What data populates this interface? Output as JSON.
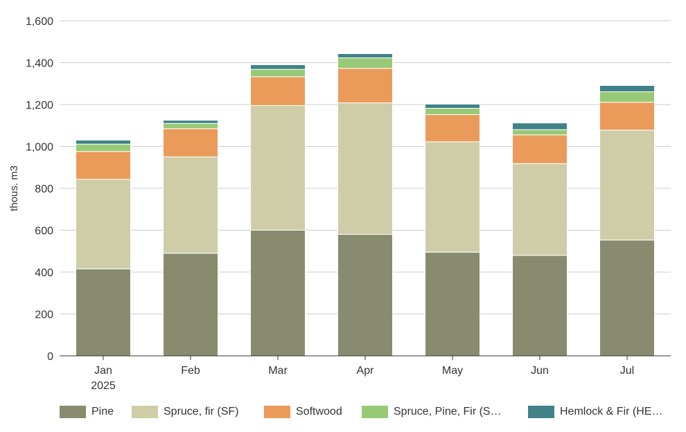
{
  "chart_data": {
    "type": "bar",
    "stacked": true,
    "title": "",
    "xlabel": "",
    "ylabel": "thous. m3",
    "ylim": [
      0,
      1600
    ],
    "yticks": [
      0,
      200,
      400,
      600,
      800,
      1000,
      1200,
      1400,
      1600
    ],
    "ytick_labels": [
      "0",
      "200",
      "400",
      "600",
      "800",
      "1,000",
      "1,200",
      "1,400",
      "1,600"
    ],
    "grid": true,
    "legend_position": "bottom",
    "categories": [
      "Jan",
      "Feb",
      "Mar",
      "Apr",
      "May",
      "Jun",
      "Jul"
    ],
    "category_sublabels": [
      "2025",
      "",
      "",
      "",
      "",
      "",
      ""
    ],
    "series": [
      {
        "name": "Pine",
        "color": "#888b6e",
        "values": [
          415,
          490,
          600,
          580,
          495,
          480,
          553
        ]
      },
      {
        "name": "Spruce, fir (SF)",
        "color": "#cfcda8",
        "values": [
          428,
          460,
          595,
          628,
          527,
          438,
          525
        ]
      },
      {
        "name": "Softwood",
        "color": "#ea9b59",
        "values": [
          133,
          135,
          138,
          165,
          130,
          137,
          133
        ]
      },
      {
        "name": "Spruce, Pine, Fir (S…",
        "color": "#98c976",
        "values": [
          35,
          25,
          35,
          50,
          30,
          25,
          50
        ]
      },
      {
        "name": "Hemlock & Fir (HE…",
        "color": "#408288",
        "values": [
          19,
          15,
          22,
          20,
          20,
          32,
          30
        ]
      }
    ]
  }
}
